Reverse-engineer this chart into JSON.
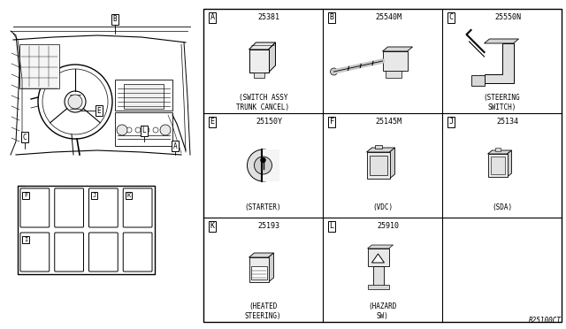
{
  "bg_color": "#ffffff",
  "watermark": "R25100CT",
  "fig_width": 6.4,
  "fig_height": 3.72,
  "grid_cells": [
    {
      "label": "A",
      "part_num": "25381",
      "desc": "(SWITCH ASSY\nTRUNK CANCEL)",
      "row": 0,
      "col": 0
    },
    {
      "label": "B",
      "part_num": "25540M",
      "desc": "",
      "row": 0,
      "col": 1
    },
    {
      "label": "C",
      "part_num": "25550N",
      "desc": "(STEERING\nSWITCH)",
      "row": 0,
      "col": 2
    },
    {
      "label": "E",
      "part_num": "25150Y",
      "desc": "(STARTER)",
      "row": 1,
      "col": 0
    },
    {
      "label": "F",
      "part_num": "25145M",
      "desc": "(VDC)",
      "row": 1,
      "col": 1
    },
    {
      "label": "J",
      "part_num": "25134",
      "desc": "(SDA)",
      "row": 1,
      "col": 2
    },
    {
      "label": "K",
      "part_num": "25193",
      "desc": "(HEATED\nSTEERING)",
      "row": 2,
      "col": 0
    },
    {
      "label": "L",
      "part_num": "25910",
      "desc": "(HAZARD\nSW)",
      "row": 2,
      "col": 1
    },
    {
      "label": "",
      "part_num": "",
      "desc": "",
      "row": 2,
      "col": 2
    }
  ]
}
